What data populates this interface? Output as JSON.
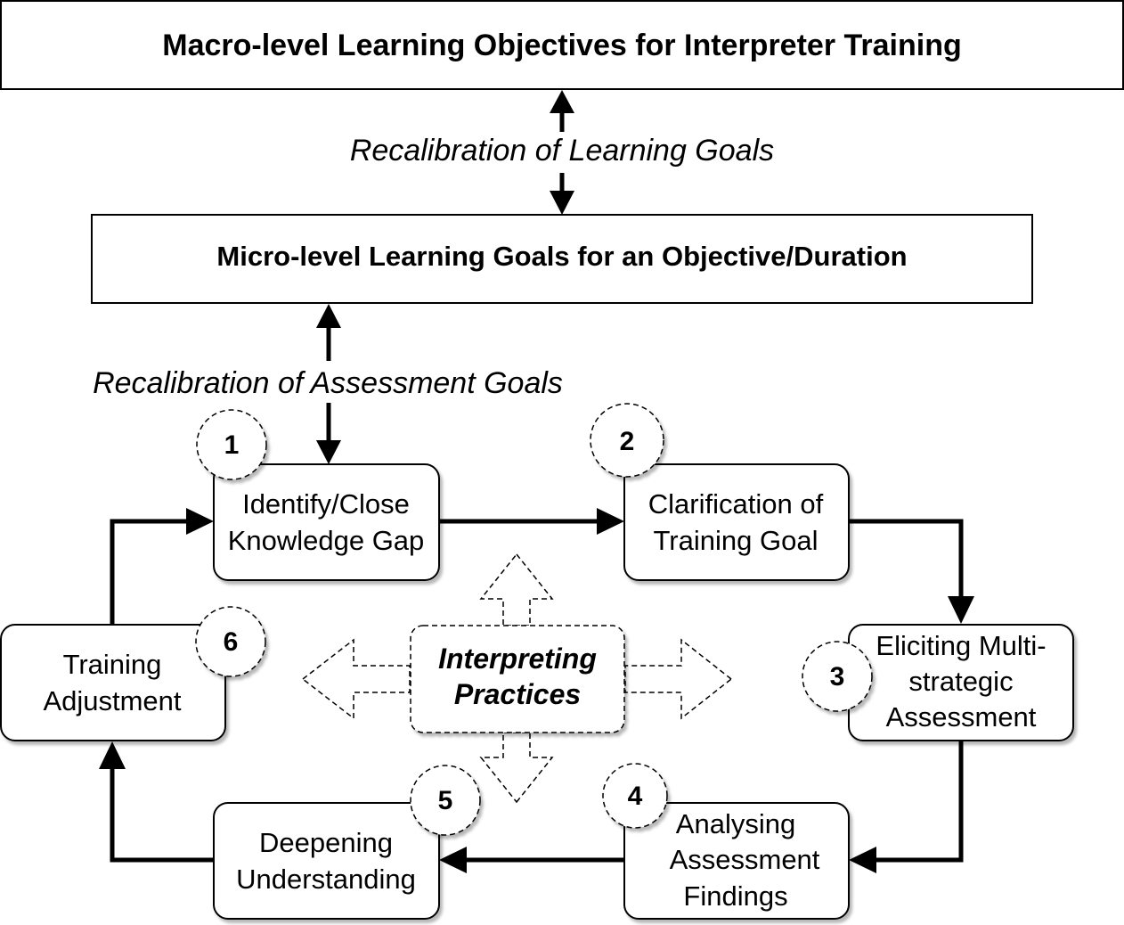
{
  "macro_box": {
    "label": "Macro-level Learning Objectives for Interpreter Training"
  },
  "micro_box": {
    "label": "Micro-level Learning Goals for an Objective/Duration"
  },
  "recalibration": {
    "learning_goals": "Recalibration of Learning Goals",
    "assessment_goals": "Recalibration of Assessment Goals"
  },
  "center": {
    "line1": "Interpreting",
    "line2": "Practices"
  },
  "steps": [
    {
      "number": "1",
      "line1": "Identify/Close",
      "line2": "Knowledge Gap"
    },
    {
      "number": "2",
      "line1": "Clarification of",
      "line2": "Training Goal"
    },
    {
      "number": "3",
      "line1": "Eliciting Multi-",
      "line2": "strategic",
      "line3": "Assessment"
    },
    {
      "number": "4",
      "line1": "Analysing",
      "line2": "Assessment",
      "line3": "Findings"
    },
    {
      "number": "5",
      "line1": "Deepening",
      "line2": "Understanding"
    },
    {
      "number": "6",
      "line1": "Training",
      "line2": "Adjustment"
    }
  ]
}
